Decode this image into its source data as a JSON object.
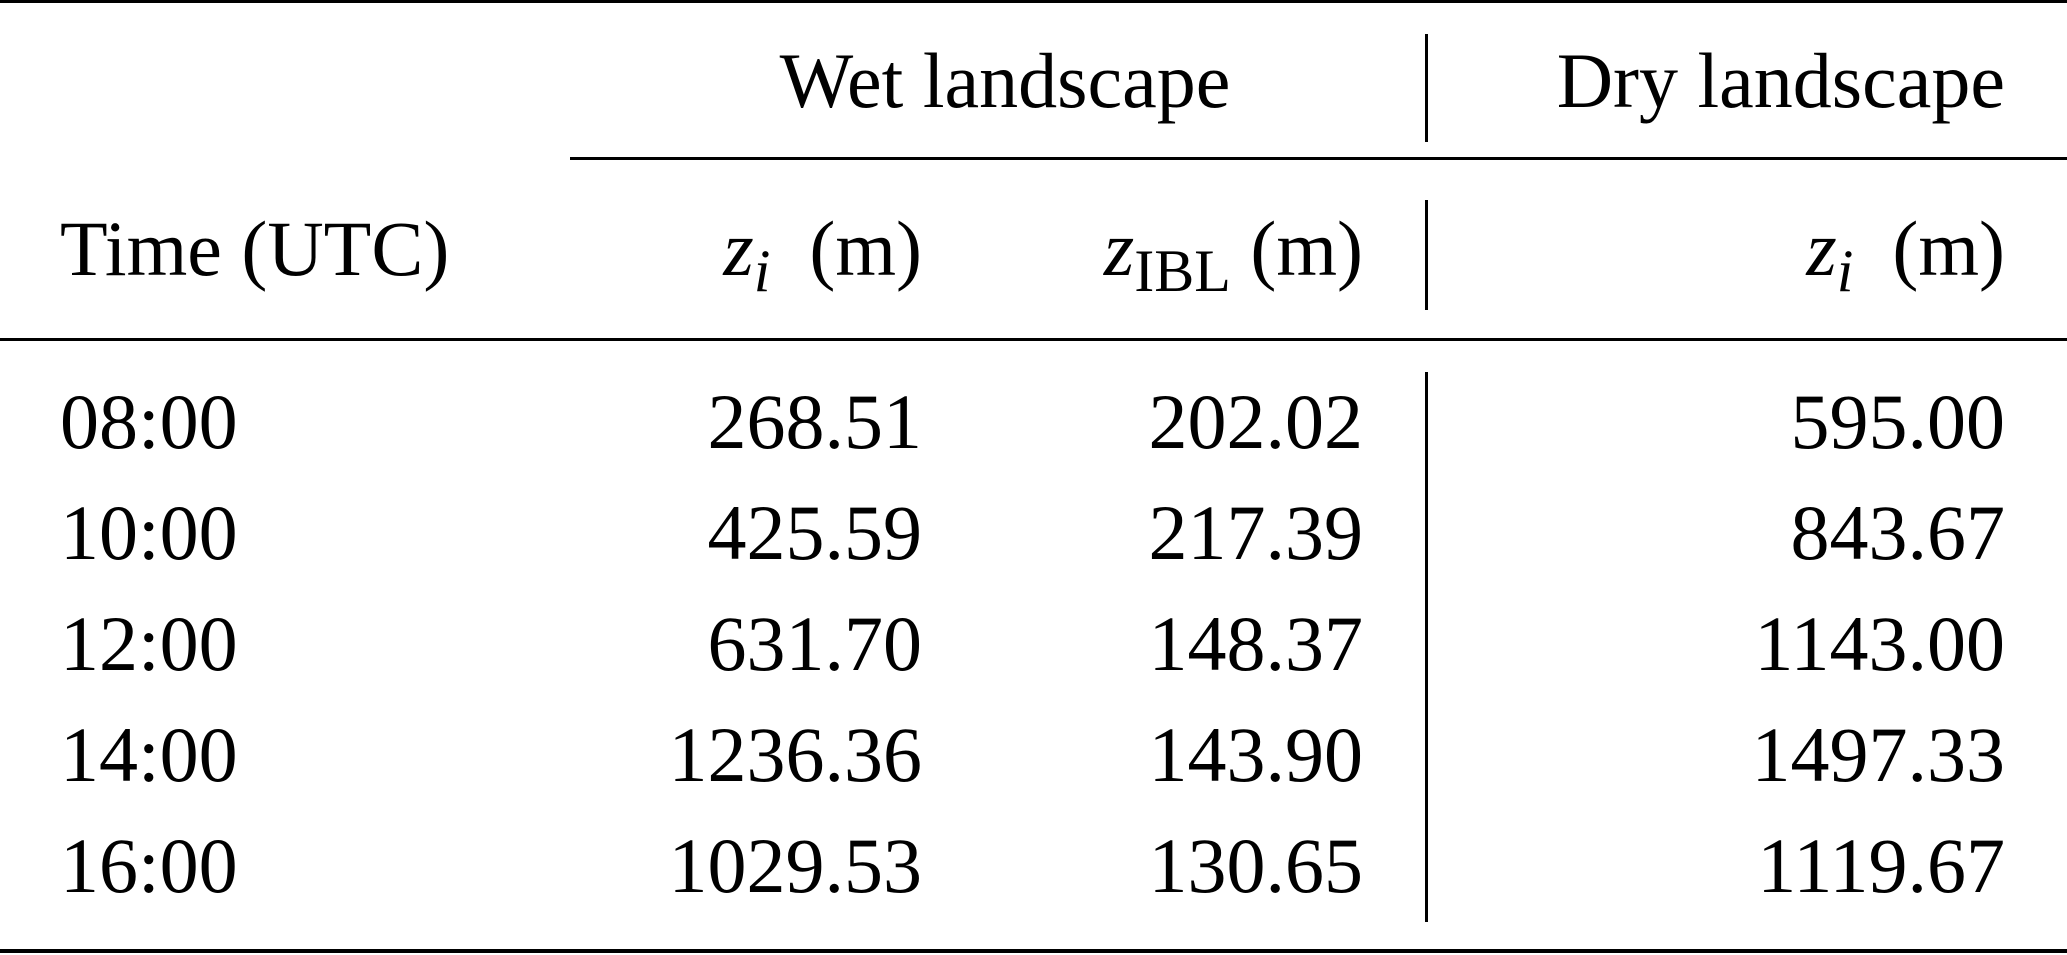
{
  "table": {
    "group_headers": {
      "wet": "Wet landscape",
      "dry": "Dry landscape"
    },
    "column_headers": {
      "time": "Time (UTC)",
      "wet_zi_var": "z",
      "wet_zi_sub": "i",
      "wet_zi_unit": "(m)",
      "wet_zibl_var": "z",
      "wet_zibl_sub": "IBL",
      "wet_zibl_unit": "(m)",
      "dry_zi_var": "z",
      "dry_zi_sub": "i",
      "dry_zi_unit": "(m)"
    },
    "rows": [
      {
        "time": "08:00",
        "wet_zi": "268.51",
        "wet_zibl": "202.02",
        "dry_zi": "595.00"
      },
      {
        "time": "10:00",
        "wet_zi": "425.59",
        "wet_zibl": "217.39",
        "dry_zi": "843.67"
      },
      {
        "time": "12:00",
        "wet_zi": "631.70",
        "wet_zibl": "148.37",
        "dry_zi": "1143.00"
      },
      {
        "time": "14:00",
        "wet_zi": "1236.36",
        "wet_zibl": "143.90",
        "dry_zi": "1497.33"
      },
      {
        "time": "16:00",
        "wet_zi": "1029.53",
        "wet_zibl": "130.65",
        "dry_zi": "1119.67"
      }
    ]
  }
}
